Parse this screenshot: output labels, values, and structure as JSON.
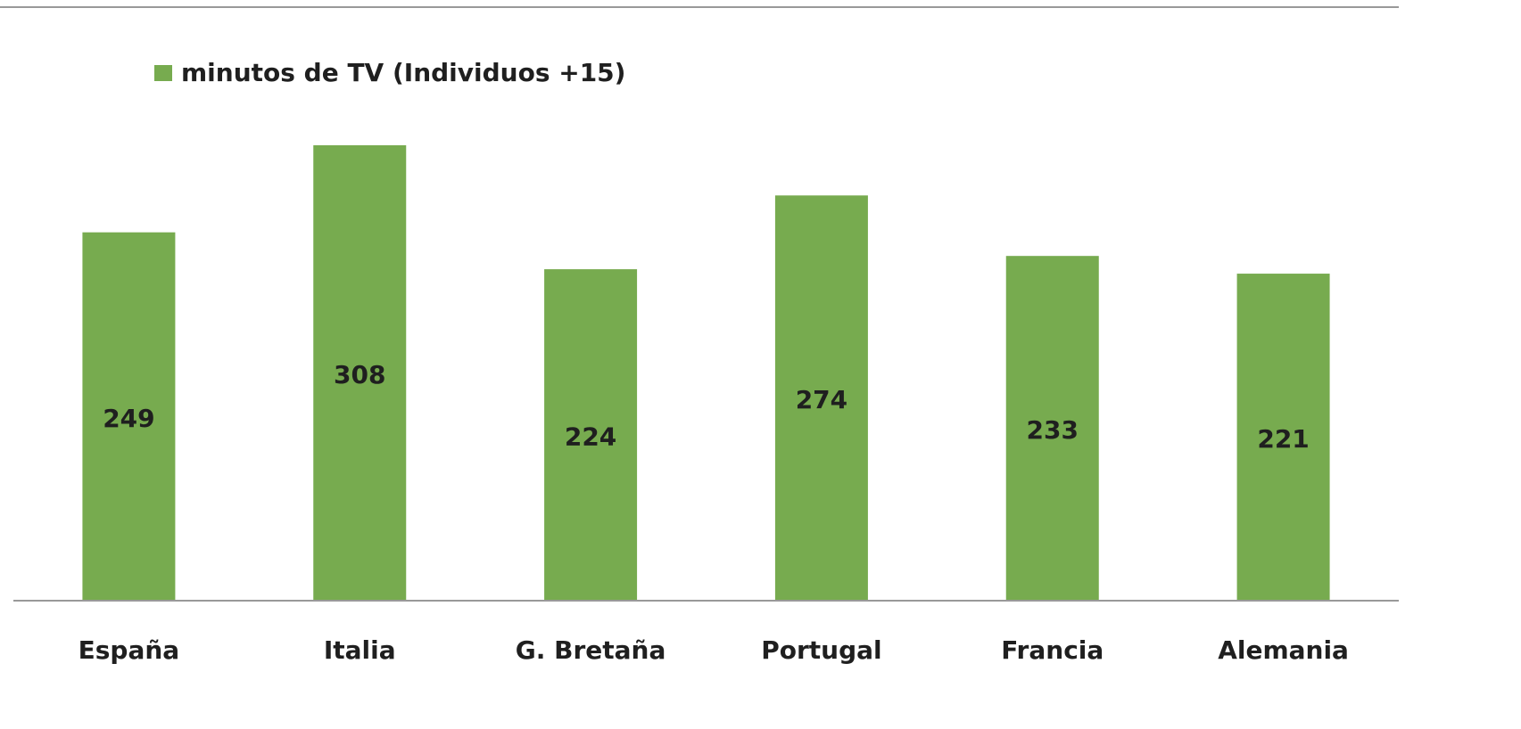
{
  "chart_data": {
    "type": "bar",
    "categories": [
      "España",
      "Italia",
      "G. Bretaña",
      "Portugal",
      "Francia",
      "Alemania"
    ],
    "series": [
      {
        "name": "minutos de TV (Individuos +15)",
        "color": "#77ab4f",
        "values": [
          249,
          308,
          224,
          274,
          233,
          221
        ]
      }
    ],
    "legend": "top-left"
  }
}
